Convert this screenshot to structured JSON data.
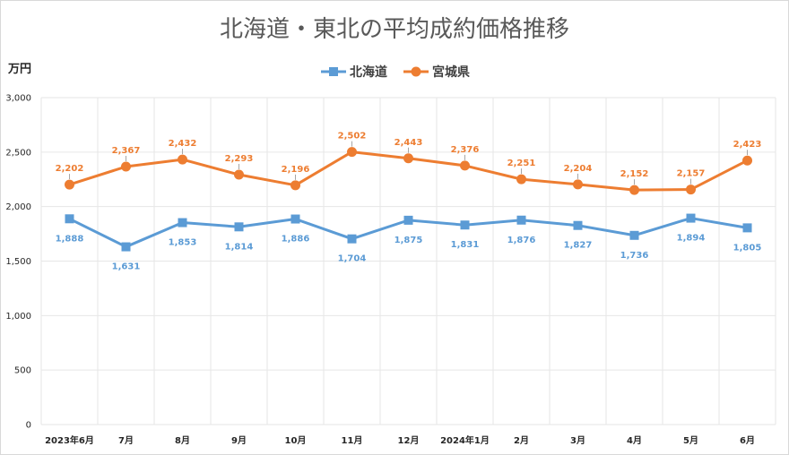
{
  "chart_data": {
    "type": "line",
    "title": "北海道・東北の平均成約価格推移",
    "ylabel": "万円",
    "xlabel": "",
    "categories": [
      "2023年6月",
      "7月",
      "8月",
      "9月",
      "10月",
      "11月",
      "12月",
      "2024年1月",
      "2月",
      "3月",
      "4月",
      "5月",
      "6月"
    ],
    "ylim": [
      0,
      3000
    ],
    "yticks": [
      0,
      500,
      1000,
      1500,
      2000,
      2500,
      3000
    ],
    "ytick_labels": [
      "0",
      "500",
      "1,000",
      "1,500",
      "2,000",
      "2,500",
      "3,000"
    ],
    "grid": "horizontal and vertical",
    "legend": "top-center",
    "series": [
      {
        "name": "北海道",
        "color": "#5b9bd5",
        "marker": "square",
        "labels_position": "below",
        "values": [
          1888,
          1631,
          1853,
          1814,
          1886,
          1704,
          1875,
          1831,
          1876,
          1827,
          1736,
          1894,
          1805
        ],
        "labels": [
          "1,888",
          "1,631",
          "1,853",
          "1,814",
          "1,886",
          "1,704",
          "1,875",
          "1,831",
          "1,876",
          "1,827",
          "1,736",
          "1,894",
          "1,805"
        ]
      },
      {
        "name": "宮城県",
        "color": "#ed7d31",
        "marker": "circle",
        "labels_position": "above",
        "values": [
          2202,
          2367,
          2432,
          2293,
          2196,
          2502,
          2443,
          2376,
          2251,
          2204,
          2152,
          2157,
          2423
        ],
        "labels": [
          "2,202",
          "2,367",
          "2,432",
          "2,293",
          "2,196",
          "2,502",
          "2,443",
          "2,376",
          "2,251",
          "2,204",
          "2,152",
          "2,157",
          "2,423"
        ]
      }
    ]
  }
}
